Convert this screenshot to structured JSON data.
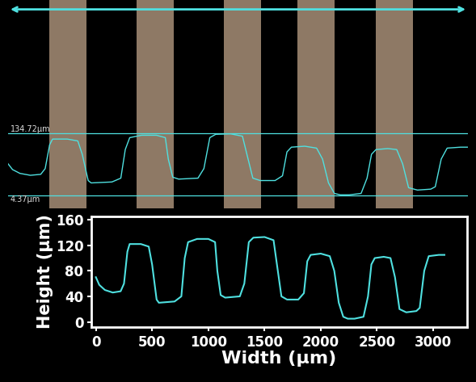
{
  "chart_data": {
    "type": "line",
    "x_label": "Width (µm)",
    "y_label": "Height (µm)",
    "x": [
      0,
      30,
      80,
      150,
      220,
      250,
      280,
      300,
      400,
      470,
      500,
      540,
      560,
      700,
      760,
      790,
      820,
      900,
      1000,
      1060,
      1080,
      1110,
      1150,
      1280,
      1320,
      1360,
      1400,
      1500,
      1580,
      1610,
      1650,
      1700,
      1800,
      1850,
      1880,
      1910,
      2000,
      2080,
      2120,
      2160,
      2200,
      2240,
      2300,
      2380,
      2420,
      2450,
      2480,
      2560,
      2620,
      2660,
      2700,
      2760,
      2850,
      2880,
      2920,
      2960,
      3050,
      3100
    ],
    "values": [
      70,
      58,
      50,
      46,
      48,
      60,
      110,
      122,
      122,
      118,
      90,
      35,
      30,
      32,
      40,
      100,
      125,
      130,
      130,
      125,
      80,
      42,
      38,
      40,
      60,
      125,
      132,
      133,
      128,
      90,
      40,
      35,
      35,
      45,
      95,
      105,
      107,
      103,
      80,
      30,
      8,
      5,
      5,
      8,
      40,
      90,
      100,
      102,
      100,
      70,
      20,
      15,
      17,
      22,
      80,
      103,
      105,
      105
    ],
    "color": "#4fe0e0",
    "xlim": [
      -40,
      3300
    ],
    "ylim": [
      -8,
      165
    ],
    "xticks": [
      0,
      500,
      1000,
      1500,
      2000,
      2500,
      3000
    ],
    "yticks": [
      0,
      40,
      80,
      120,
      160
    ],
    "grid": false,
    "annotations": [
      {
        "value": 134.72,
        "label": "134.72µm"
      },
      {
        "value": 4.37,
        "label": "4.37µm"
      }
    ]
  }
}
